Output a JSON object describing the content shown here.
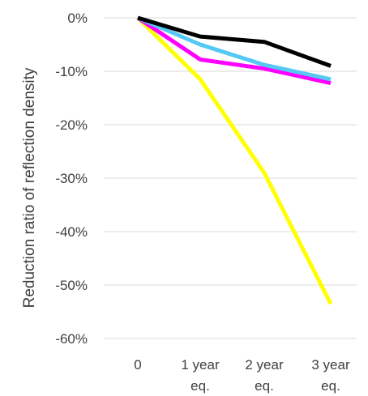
{
  "chart_data": {
    "type": "line",
    "title": "",
    "xlabel": "",
    "ylabel": "Reduction ratio of reflection density",
    "categories": [
      [
        "0"
      ],
      [
        "1 year",
        "eq."
      ],
      [
        "2 year",
        "eq."
      ],
      [
        "3 year",
        "eq."
      ]
    ],
    "y_ticks": [
      0,
      -10,
      -20,
      -30,
      -40,
      -50,
      -60
    ],
    "y_tick_labels": [
      "0%",
      "-10%",
      "-20%",
      "-30%",
      "-40%",
      "-50%",
      "-60%"
    ],
    "ylim": [
      -60,
      0
    ],
    "grid": true,
    "legend": "none",
    "series": [
      {
        "color": "#ffff00",
        "values": [
          0,
          -11.5,
          -29,
          -53.5
        ]
      },
      {
        "color": "#ff00ff",
        "values": [
          0,
          -7.8,
          -9.5,
          -12.2
        ]
      },
      {
        "color": "#55c8f5",
        "values": [
          0,
          -5.0,
          -8.8,
          -11.5
        ]
      },
      {
        "color": "#000000",
        "values": [
          0,
          -3.5,
          -4.5,
          -9.0
        ]
      }
    ]
  }
}
